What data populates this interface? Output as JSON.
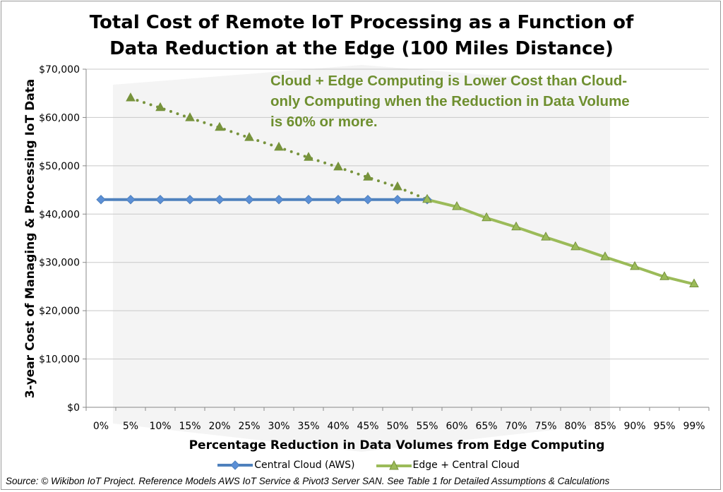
{
  "chart_data": {
    "type": "line",
    "title": "Total Cost of Remote IoT Processing as a Function of Data Reduction at the Edge (100 Miles Distance)",
    "title_lines": [
      "Total Cost of Remote IoT Processing as a Function of",
      "Data Reduction at the Edge (100 Miles Distance)"
    ],
    "xlabel": "Percentage Reduction in Data Volumes from Edge Computing",
    "ylabel": "3-year Cost of Managing & Processing IoT Data",
    "categories": [
      "0%",
      "5%",
      "10%",
      "15%",
      "20%",
      "25%",
      "30%",
      "35%",
      "40%",
      "45%",
      "50%",
      "55%",
      "60%",
      "65%",
      "70%",
      "75%",
      "80%",
      "85%",
      "90%",
      "95%",
      "99%"
    ],
    "ylim": [
      0,
      70000
    ],
    "yticks": [
      0,
      10000,
      20000,
      30000,
      40000,
      50000,
      60000,
      70000
    ],
    "ytick_labels": [
      "$0",
      "$10,000",
      "$20,000",
      "$30,000",
      "$40,000",
      "$50,000",
      "$60,000",
      "$70,000"
    ],
    "grid": true,
    "legend_position": "bottom",
    "series": [
      {
        "name": "Central Cloud (AWS)",
        "color": "#4f81bd",
        "marker": "diamond",
        "values": [
          43000,
          43000,
          43000,
          43000,
          43000,
          43000,
          43000,
          43000,
          43000,
          43000,
          43000,
          43000,
          null,
          null,
          null,
          null,
          null,
          null,
          null,
          null,
          null
        ]
      },
      {
        "name": "Edge + Central Cloud",
        "color": "#9bbb59",
        "dotted_color": "#77933c",
        "marker": "triangle",
        "dotted_until": "55%",
        "values": [
          null,
          64000,
          62000,
          59900,
          57900,
          55800,
          53800,
          51700,
          49700,
          47600,
          45600,
          43000,
          41500,
          39200,
          37300,
          35200,
          33200,
          31100,
          29100,
          27000,
          25500
        ]
      }
    ],
    "annotation": "Cloud + Edge Computing is Lower Cost than Cloud-only Computing when the Reduction in Data Volume is 60% or more.",
    "annotation_lines": [
      "Cloud + Edge Computing is Lower Cost than Cloud-",
      "only Computing when the Reduction in Data Volume",
      "is 60% or more."
    ],
    "annotation_color": "#6e8f2f"
  },
  "source": "Source: © Wikibon IoT Project. Reference Models AWS IoT Service & Pivot3 Server SAN. See Table 1 for Detailed Assumptions & Calculations"
}
